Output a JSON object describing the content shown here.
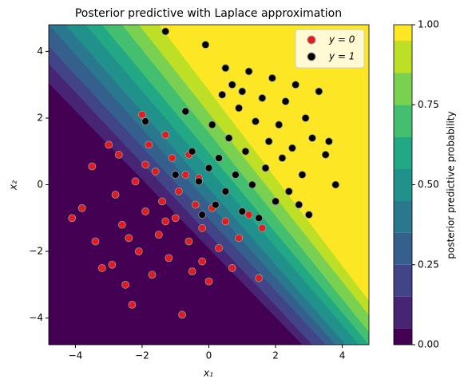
{
  "chart_data": {
    "type": "contour_scatter",
    "title": "Posterior predictive with Laplace approximation",
    "x_label": "x₁",
    "y_label": "x₂",
    "xlim": [
      -4.8,
      4.8
    ],
    "ylim": [
      -4.8,
      4.8
    ],
    "xticks": [
      {
        "value": -4,
        "label": "−4"
      },
      {
        "value": -2,
        "label": "−2"
      },
      0,
      2,
      4
    ],
    "yticks": [
      {
        "value": -4,
        "label": "−4"
      },
      {
        "value": -2,
        "label": "−2"
      },
      0,
      2,
      4
    ],
    "contours": [
      {
        "level": 0.05,
        "x": [
          -6.5,
          2.8
        ],
        "y": [
          4.8,
          -4.8
        ]
      },
      {
        "level": 0.15,
        "x": [
          -5.9,
          3.1
        ],
        "y": [
          4.8,
          -4.8
        ]
      },
      {
        "level": 0.25,
        "x": [
          -5.4,
          3.5
        ],
        "y": [
          4.8,
          -4.8
        ]
      },
      {
        "level": 0.35,
        "x": [
          -4.8,
          3.8
        ],
        "y": [
          4.8,
          -4.8
        ]
      },
      {
        "level": 0.45,
        "x": [
          -4.3,
          4.1
        ],
        "y": [
          4.8,
          -4.8
        ]
      },
      {
        "level": 0.55,
        "x": [
          -3.7,
          4.5
        ],
        "y": [
          4.8,
          -4.8
        ]
      },
      {
        "level": 0.65,
        "x": [
          -3.2,
          4.8
        ],
        "y": [
          4.8,
          -4.8
        ]
      },
      {
        "level": 0.75,
        "x": [
          -2.6,
          5.1
        ],
        "y": [
          4.8,
          -4.8
        ]
      },
      {
        "level": 0.85,
        "x": [
          -2.1,
          5.5
        ],
        "y": [
          4.8,
          -4.8
        ]
      },
      {
        "level": 0.95,
        "x": [
          -1.5,
          5.8
        ],
        "y": [
          4.8,
          -4.8
        ]
      }
    ],
    "band_colors": [
      "#440154",
      "#482475",
      "#414487",
      "#355f8d",
      "#2a788e",
      "#21918c",
      "#22a884",
      "#44bf70",
      "#7ad151",
      "#bddf26",
      "#fde725"
    ],
    "colorbar": {
      "label": "posterior predictive probability",
      "lim": [
        0,
        1
      ],
      "ticks": [
        {
          "value": 0,
          "label": "0.00"
        },
        {
          "value": 0.25,
          "label": "0.25"
        },
        {
          "value": 0.5,
          "label": "0.50"
        },
        {
          "value": 0.75,
          "label": "0.75"
        },
        {
          "value": 1,
          "label": "1.00"
        }
      ]
    },
    "legend": "upper right",
    "series": [
      {
        "name": "y = 0",
        "color": "#e41a1c",
        "x": [
          -4.1,
          -3.8,
          -3.5,
          -3.4,
          -3.0,
          -2.9,
          -2.8,
          -2.7,
          -2.6,
          -2.5,
          -2.3,
          -2.2,
          -2.1,
          -2.0,
          -1.9,
          -1.8,
          -1.7,
          -1.6,
          -1.5,
          -1.4,
          -1.3,
          -1.2,
          -1.1,
          -1.0,
          -0.9,
          -0.8,
          -0.7,
          -0.6,
          -0.5,
          -0.4,
          -0.3,
          -0.2,
          0.0,
          0.1,
          0.3,
          0.5,
          0.7,
          0.9,
          1.2,
          1.5,
          1.6,
          -2.4,
          -1.9,
          -1.3,
          -0.6,
          -3.2,
          -0.2
        ],
        "y": [
          -1.0,
          -0.7,
          0.55,
          -1.7,
          1.2,
          -2.4,
          -0.3,
          0.9,
          -1.2,
          -3.0,
          -3.6,
          0.1,
          -2.0,
          2.1,
          -0.8,
          1.2,
          -2.7,
          0.4,
          -1.5,
          -0.5,
          1.5,
          -2.2,
          0.8,
          -1.0,
          -0.2,
          -3.9,
          0.3,
          -1.7,
          -2.6,
          -0.6,
          0.2,
          -1.3,
          -2.9,
          -0.7,
          -1.9,
          -1.1,
          -2.5,
          -1.6,
          -0.9,
          -2.8,
          -1.3,
          -1.6,
          0.6,
          -1.1,
          0.9,
          -2.5,
          -2.3
        ]
      },
      {
        "name": "y = 1",
        "color": "#000000",
        "x": [
          -1.9,
          -1.3,
          -0.7,
          -0.5,
          -0.3,
          -0.1,
          0.1,
          0.2,
          0.3,
          0.4,
          0.5,
          0.6,
          0.7,
          0.8,
          0.9,
          1.0,
          1.1,
          1.2,
          1.3,
          1.4,
          1.5,
          1.6,
          1.7,
          1.8,
          1.9,
          2.0,
          2.1,
          2.2,
          2.3,
          2.4,
          2.5,
          2.6,
          2.8,
          2.9,
          3.0,
          3.1,
          3.3,
          3.5,
          3.6,
          3.8,
          -0.2,
          0.0,
          -1.0,
          1.0,
          2.7,
          0.5
        ],
        "y": [
          1.9,
          4.6,
          2.2,
          1.0,
          0.1,
          4.2,
          1.8,
          -0.6,
          0.8,
          2.7,
          -0.2,
          1.4,
          3.0,
          0.3,
          2.3,
          -0.8,
          1.0,
          3.4,
          0.0,
          1.9,
          -1.0,
          2.6,
          0.5,
          1.3,
          3.2,
          -0.5,
          1.8,
          0.8,
          2.5,
          -0.2,
          1.1,
          3.0,
          0.3,
          2.0,
          -0.9,
          1.4,
          2.8,
          0.9,
          1.3,
          0.0,
          -0.9,
          0.5,
          0.3,
          2.8,
          -0.6,
          3.5
        ]
      }
    ]
  }
}
